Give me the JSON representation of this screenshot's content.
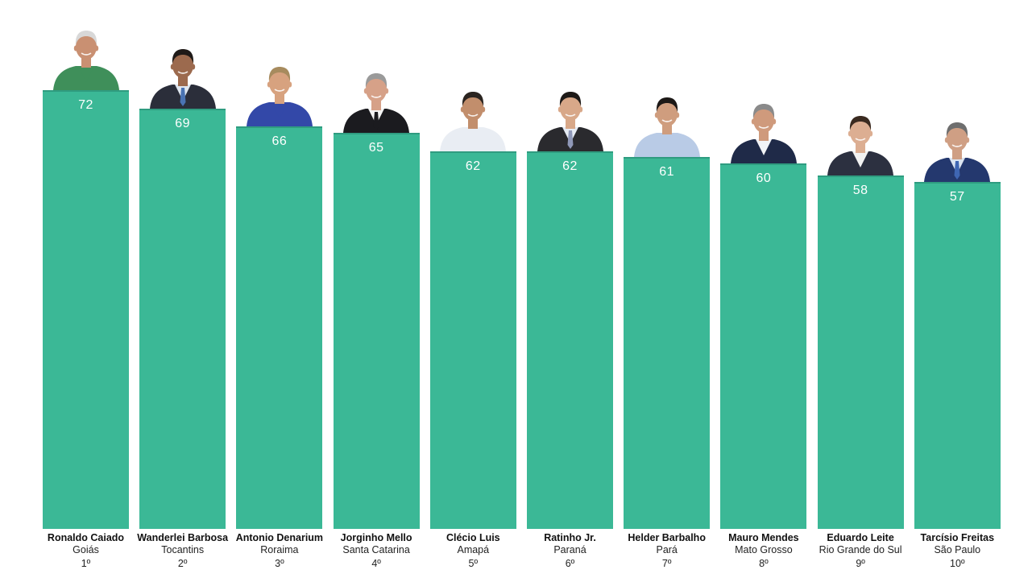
{
  "chart_data": {
    "type": "bar",
    "title": "",
    "xlabel": "",
    "ylabel": "",
    "ylim": [
      0,
      72
    ],
    "bar_color": "#3bb896",
    "value_label_color": "#ffffff",
    "categories": [
      {
        "name": "Ronaldo Caiado",
        "state": "Goiás",
        "rank": "1º",
        "value": 72,
        "portrait": {
          "icon": "governor-portrait-icon",
          "suit": "#3f8f5a",
          "shirt": "#3f8f5a",
          "tie": "",
          "hair": "#d8d8d8",
          "skin": "#c99072"
        }
      },
      {
        "name": "Wanderlei Barbosa",
        "state": "Tocantins",
        "rank": "2º",
        "value": 69,
        "portrait": {
          "icon": "governor-portrait-icon",
          "suit": "#2b2e3a",
          "shirt": "#dfe6ef",
          "tie": "#4a73b3",
          "hair": "#1f1a18",
          "skin": "#9c6a4e"
        }
      },
      {
        "name": "Antonio Denarium",
        "state": "Roraima",
        "rank": "3º",
        "value": 66,
        "portrait": {
          "icon": "governor-portrait-icon",
          "suit": "#3348a8",
          "shirt": "#3348a8",
          "tie": "",
          "hair": "#a78b5e",
          "skin": "#d7a27f"
        }
      },
      {
        "name": "Jorginho Mello",
        "state": "Santa Catarina",
        "rank": "4º",
        "value": 65,
        "portrait": {
          "icon": "governor-portrait-icon",
          "suit": "#1b1b1f",
          "shirt": "#f4f4f4",
          "tie": "#1b1b1f",
          "hair": "#9a9a9a",
          "skin": "#d6a188"
        }
      },
      {
        "name": "Clécio Luis",
        "state": "Amapá",
        "rank": "5º",
        "value": 62,
        "portrait": {
          "icon": "governor-portrait-icon",
          "suit": "#e9edf3",
          "shirt": "#e9edf3",
          "tie": "",
          "hair": "#2a2420",
          "skin": "#c28e6c"
        }
      },
      {
        "name": "Ratinho Jr.",
        "state": "Paraná",
        "rank": "6º",
        "value": 62,
        "portrait": {
          "icon": "governor-portrait-icon",
          "suit": "#2a2a2e",
          "shirt": "#e6ebf3",
          "tie": "#8f98b8",
          "hair": "#1e1a18",
          "skin": "#d8a889"
        }
      },
      {
        "name": "Helder Barbalho",
        "state": "Pará",
        "rank": "7º",
        "value": 61,
        "portrait": {
          "icon": "governor-portrait-icon",
          "suit": "#b9cbe6",
          "shirt": "#b9cbe6",
          "tie": "",
          "hair": "#1c1816",
          "skin": "#cf9d7e"
        }
      },
      {
        "name": "Mauro Mendes",
        "state": "Mato Grosso",
        "rank": "8º",
        "value": 60,
        "portrait": {
          "icon": "governor-portrait-icon",
          "suit": "#1f2a48",
          "shirt": "#f1f3f6",
          "tie": "",
          "hair": "#8a8a8a",
          "skin": "#cf9a7c"
        }
      },
      {
        "name": "Eduardo Leite",
        "state": "Rio Grande do Sul",
        "rank": "9º",
        "value": 58,
        "portrait": {
          "icon": "governor-portrait-icon",
          "suit": "#2c3040",
          "shirt": "#f2f2f2",
          "tie": "",
          "hair": "#3a2a20",
          "skin": "#dcae92"
        }
      },
      {
        "name": "Tarcísio Freitas",
        "state": "São Paulo",
        "rank": "10º",
        "value": 57,
        "portrait": {
          "icon": "governor-portrait-icon",
          "suit": "#24386e",
          "shirt": "#dbe4f0",
          "tie": "#3f66b3",
          "hair": "#6e6e6e",
          "skin": "#cf9f84"
        }
      }
    ]
  }
}
